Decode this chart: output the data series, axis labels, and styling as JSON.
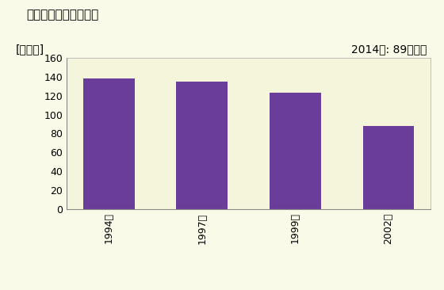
{
  "title": "商業の事業所数の推移",
  "ylabel": "[事業所]",
  "annotation": "2014年: 89事業所",
  "categories": [
    "1994年",
    "1997年",
    "1999年",
    "2002年"
  ],
  "values": [
    138,
    135,
    123,
    88
  ],
  "bar_color": "#6A3D9A",
  "ylim": [
    0,
    160
  ],
  "yticks": [
    0,
    20,
    40,
    60,
    80,
    100,
    120,
    140,
    160
  ],
  "background_color": "#FAFAE8",
  "plot_bg_color": "#F5F5DC",
  "title_fontsize": 11,
  "ylabel_fontsize": 10,
  "annotation_fontsize": 10,
  "tick_fontsize": 9
}
